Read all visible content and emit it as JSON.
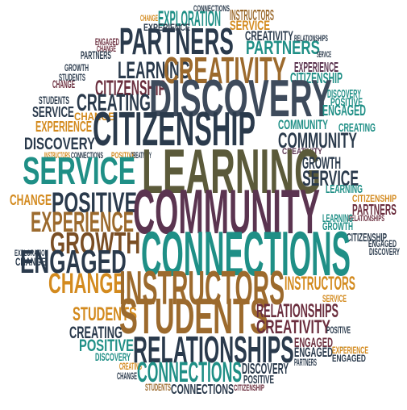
{
  "palette": {
    "navy": "#2a3a4c",
    "teal": "#1f8f86",
    "brown": "#9c6a2d",
    "darkbrown": "#7a4e24",
    "orange": "#d38a1e",
    "purple": "#5b3450",
    "maroon": "#6b2e3e",
    "olive": "#5b5a3a",
    "slate": "#3e4b5c",
    "green": "#3f7d4b"
  },
  "words": [
    {
      "text": "EXPLORATION",
      "color": "teal"
    },
    {
      "text": "INSTRUCTORS",
      "color": "brown"
    },
    {
      "text": "CONNECTIONS",
      "color": "navy"
    },
    {
      "text": "CHANGE",
      "color": "orange"
    },
    {
      "text": "EXPERIENCE",
      "color": "navy"
    },
    {
      "text": "SERVICE",
      "color": "orange"
    },
    {
      "text": "CREATIVITY",
      "color": "navy"
    },
    {
      "text": "PARTNERS",
      "color": "navy"
    },
    {
      "text": "PARTNERS",
      "color": "teal"
    },
    {
      "text": "ENGAGED",
      "color": "maroon"
    },
    {
      "text": "CHANGE",
      "color": "maroon"
    },
    {
      "text": "RELATIONSHIPS",
      "color": "navy"
    },
    {
      "text": "SERVICE",
      "color": "navy"
    },
    {
      "text": "EXPERIENCE",
      "color": "purple"
    },
    {
      "text": "LEARNING",
      "color": "navy"
    },
    {
      "text": "CREATIVITY",
      "color": "brown"
    },
    {
      "text": "CITIZENSHIP",
      "color": "teal"
    },
    {
      "text": "PARTNERS",
      "color": "navy"
    },
    {
      "text": "CHANGE",
      "color": "maroon"
    },
    {
      "text": "GROWTH",
      "color": "navy"
    },
    {
      "text": "STUDENTS",
      "color": "navy"
    },
    {
      "text": "CITIZENSHIP",
      "color": "maroon"
    },
    {
      "text": "STUDENTS",
      "color": "navy"
    },
    {
      "text": "CREATING",
      "color": "navy"
    },
    {
      "text": "DISCOVERY",
      "color": "slate"
    },
    {
      "text": "DISCOVERY",
      "color": "teal"
    },
    {
      "text": "POSITIVE",
      "color": "teal"
    },
    {
      "text": "ENGAGED",
      "color": "teal"
    },
    {
      "text": "SERVICE",
      "color": "navy"
    },
    {
      "text": "CHANGE",
      "color": "orange"
    },
    {
      "text": "EXPERIENCE",
      "color": "orange"
    },
    {
      "text": "CITIZENSHIP",
      "color": "navy"
    },
    {
      "text": "COMMUNITY",
      "color": "teal"
    },
    {
      "text": "CREATING",
      "color": "teal"
    },
    {
      "text": "DISCOVERY",
      "color": "navy"
    },
    {
      "text": "COMMUNITY",
      "color": "navy"
    },
    {
      "text": "CREATIVITY",
      "color": "purple"
    },
    {
      "text": "INSTRUCTORS",
      "color": "orange"
    },
    {
      "text": "CONNECTIONS",
      "color": "navy"
    },
    {
      "text": "POSITIVE",
      "color": "orange"
    },
    {
      "text": "CREATIVITY",
      "color": "navy"
    },
    {
      "text": "SERVICE",
      "color": "teal"
    },
    {
      "text": "LEARNING",
      "color": "olive"
    },
    {
      "text": "GROWTH",
      "color": "navy"
    },
    {
      "text": "SERVICE",
      "color": "navy"
    },
    {
      "text": "LEARNING",
      "color": "teal"
    },
    {
      "text": "CHANGE",
      "color": "orange"
    },
    {
      "text": "POSITIVE",
      "color": "navy"
    },
    {
      "text": "CITIZENSHIP",
      "color": "orange"
    },
    {
      "text": "PARTNERS",
      "color": "maroon"
    },
    {
      "text": "RELATIONSHIPS",
      "color": "maroon"
    },
    {
      "text": "COMMUNITY",
      "color": "purple"
    },
    {
      "text": "EXPERIENCE",
      "color": "brown"
    },
    {
      "text": "LEARNING",
      "color": "teal"
    },
    {
      "text": "GROWTH",
      "color": "teal"
    },
    {
      "text": "CITIZENSHIP",
      "color": "navy"
    },
    {
      "text": "GROWTH",
      "color": "darkbrown"
    },
    {
      "text": "CONNECTIONS",
      "color": "teal"
    },
    {
      "text": "ENGAGED",
      "color": "navy"
    },
    {
      "text": "CHANGE",
      "color": "navy"
    },
    {
      "text": "EXPLORATION",
      "color": "navy"
    },
    {
      "text": "ENGAGED",
      "color": "navy"
    },
    {
      "text": "DISCOVERY",
      "color": "navy"
    },
    {
      "text": "CHANGE",
      "color": "orange"
    },
    {
      "text": "INSTRUCTORS",
      "color": "brown"
    },
    {
      "text": "INSTRUCTORS",
      "color": "orange"
    },
    {
      "text": "STUDENTS",
      "color": "orange"
    },
    {
      "text": "STUDENTS",
      "color": "brown"
    },
    {
      "text": "RELATIONSHIPS",
      "color": "maroon"
    },
    {
      "text": "SERVICE",
      "color": "orange"
    },
    {
      "text": "CREATING",
      "color": "navy"
    },
    {
      "text": "CREATIVITY",
      "color": "maroon"
    },
    {
      "text": "POSITIVE",
      "color": "teal"
    },
    {
      "text": "POSITIVE",
      "color": "navy"
    },
    {
      "text": "RELATIONSHIPS",
      "color": "navy"
    },
    {
      "text": "ENGAGED",
      "color": "maroon"
    },
    {
      "text": "DISCOVERY",
      "color": "teal"
    },
    {
      "text": "CHANGE",
      "color": "navy"
    },
    {
      "text": "CREATING",
      "color": "orange"
    },
    {
      "text": "ENGAGED",
      "color": "navy"
    },
    {
      "text": "CONNECTIONS",
      "color": "teal"
    },
    {
      "text": "DISCOVERY",
      "color": "navy"
    },
    {
      "text": "POSITIVE",
      "color": "navy"
    },
    {
      "text": "PARTNERS",
      "color": "navy"
    },
    {
      "text": "STUDENTS",
      "color": "brown"
    },
    {
      "text": "CONNECTIONS",
      "color": "navy"
    },
    {
      "text": "CITIZENSHIP",
      "color": "maroon"
    },
    {
      "text": "EXPERIENCE",
      "color": "orange"
    },
    {
      "text": "ENGAGED",
      "color": "navy"
    },
    {
      "text": "DISCOVERY",
      "color": "teal"
    }
  ]
}
